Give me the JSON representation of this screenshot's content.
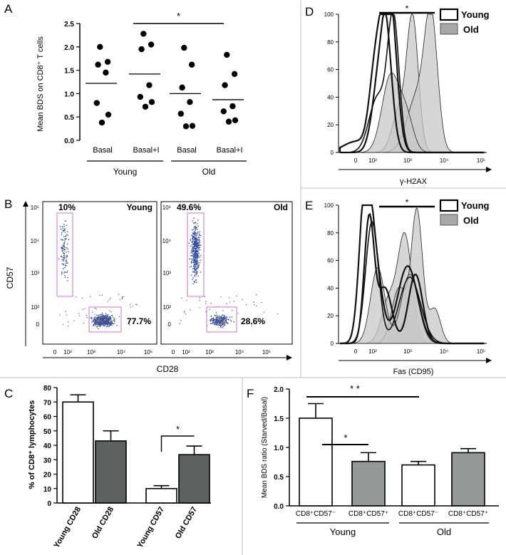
{
  "panels": {
    "A": {
      "label": "A"
    },
    "B": {
      "label": "B"
    },
    "C": {
      "label": "C"
    },
    "D": {
      "label": "D"
    },
    "E": {
      "label": "E"
    },
    "F": {
      "label": "F"
    }
  },
  "chart_data": [
    {
      "id": "A",
      "type": "scatter",
      "ylabel": "Mean BDS on CD8⁺ T cells",
      "ylim": [
        0,
        2.5
      ],
      "yticks": [
        "0.0",
        "0.5",
        "1.0",
        "1.5",
        "2.0",
        "2.5"
      ],
      "categories": [
        "Basal",
        "Basal+I",
        "Basal",
        "Basal+I"
      ],
      "groups": [
        {
          "name": "Young",
          "categories": [
            0,
            1
          ]
        },
        {
          "name": "Old",
          "categories": [
            2,
            3
          ]
        }
      ],
      "points": [
        [
          0.38,
          0.55,
          0.8,
          1.45,
          1.62,
          1.68,
          2.0
        ],
        [
          0.72,
          0.82,
          0.93,
          1.18,
          1.95,
          2.05,
          2.28
        ],
        [
          0.3,
          0.31,
          0.57,
          0.82,
          1.13,
          1.62,
          1.98
        ],
        [
          0.4,
          0.43,
          0.62,
          0.73,
          1.18,
          1.42,
          1.83
        ]
      ],
      "means": [
        1.22,
        1.42,
        1.0,
        0.87
      ],
      "significance": {
        "label": "*",
        "from": 1,
        "to": 3
      }
    },
    {
      "id": "B",
      "type": "scatter",
      "xlabel": "CD28",
      "ylabel": "CD57",
      "xticks": [
        "0",
        "10²",
        "10³",
        "10⁴",
        "10⁵"
      ],
      "yticks": [
        "0",
        "10²",
        "10³",
        "10⁴",
        "10⁵"
      ],
      "plots": [
        {
          "name": "Young",
          "gate_high": "10%",
          "gate_low": "77.7%"
        },
        {
          "name": "Old",
          "gate_high": "49.6%",
          "gate_low": "28.6%"
        }
      ]
    },
    {
      "id": "C",
      "type": "bar",
      "ylabel": "% of CD8⁺ lymphocytes",
      "ylim": [
        0,
        80
      ],
      "yticks": [
        "0",
        "10",
        "20",
        "30",
        "40",
        "50",
        "60",
        "70",
        "80"
      ],
      "categories": [
        "Young CD28",
        "Old CD28",
        "Young CD57",
        "Old CD57"
      ],
      "values": [
        70,
        43,
        10,
        33.5
      ],
      "errors": [
        5,
        7,
        2,
        6
      ],
      "colors": [
        "#ffffff",
        "#5e6362",
        "#ffffff",
        "#5e6362"
      ],
      "significance": {
        "label": "*",
        "from": 2,
        "to": 3
      }
    },
    {
      "id": "D",
      "type": "line",
      "xlabel": "γ-H2AX",
      "ylim": [
        0,
        100
      ],
      "yticks": [
        "0",
        "20",
        "40",
        "60",
        "80",
        "100"
      ],
      "xticks": [
        "0",
        "10²",
        "10³",
        "10⁴",
        "10⁵"
      ],
      "legend": [
        "Young",
        "Old"
      ],
      "legend_position": "top-right",
      "significance": {
        "label": "*"
      }
    },
    {
      "id": "E",
      "type": "line",
      "xlabel": "Fas (CD95)",
      "ylim": [
        0,
        100
      ],
      "yticks": [
        "0",
        "20",
        "40",
        "60",
        "80",
        "100"
      ],
      "xticks": [
        "0",
        "10²",
        "10³",
        "10⁴",
        "10⁵"
      ],
      "legend": [
        "Young",
        "Old"
      ],
      "legend_position": "top-right",
      "significance": {
        "label": "*"
      }
    },
    {
      "id": "F",
      "type": "bar",
      "ylabel": "Mean BDS ratio (Starved/Basal)",
      "ylim": [
        0,
        2.0
      ],
      "yticks": [
        "0.0",
        "0.5",
        "1.0",
        "1.5",
        "2.0"
      ],
      "categories": [
        "CD8⁺CD57⁻",
        "CD8⁺CD57⁺",
        "CD8⁺CD57⁻",
        "CD8⁺CD57⁺"
      ],
      "values": [
        1.5,
        0.76,
        0.7,
        0.91
      ],
      "errors": [
        0.25,
        0.15,
        0.06,
        0.07
      ],
      "colors": [
        "#ffffff",
        "#949897",
        "#ffffff",
        "#949897"
      ],
      "groups": [
        {
          "name": "Young",
          "categories": [
            0,
            1
          ]
        },
        {
          "name": "Old",
          "categories": [
            2,
            3
          ]
        }
      ],
      "significance": [
        {
          "label": "* *",
          "from": 0,
          "to": 2
        },
        {
          "label": "*",
          "from": 0,
          "to": 1
        }
      ]
    }
  ]
}
